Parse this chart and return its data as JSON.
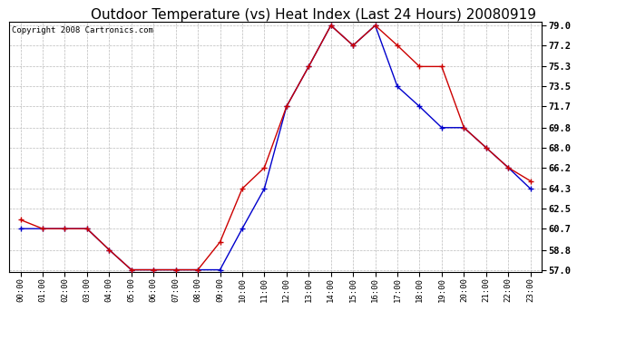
{
  "title": "Outdoor Temperature (vs) Heat Index (Last 24 Hours) 20080919",
  "copyright": "Copyright 2008 Cartronics.com",
  "x_labels": [
    "00:00",
    "01:00",
    "02:00",
    "03:00",
    "04:00",
    "05:00",
    "06:00",
    "07:00",
    "08:00",
    "09:00",
    "10:00",
    "11:00",
    "12:00",
    "13:00",
    "14:00",
    "15:00",
    "16:00",
    "17:00",
    "18:00",
    "19:00",
    "20:00",
    "21:00",
    "22:00",
    "23:00"
  ],
  "temp": [
    61.5,
    60.7,
    60.7,
    60.7,
    58.8,
    57.0,
    57.0,
    57.0,
    57.0,
    59.5,
    64.3,
    66.2,
    71.7,
    75.3,
    79.0,
    77.2,
    79.0,
    77.2,
    75.3,
    75.3,
    69.8,
    68.0,
    66.2,
    65.0
  ],
  "heat_index": [
    60.7,
    60.7,
    60.7,
    60.7,
    58.8,
    57.0,
    57.0,
    57.0,
    57.0,
    57.0,
    60.7,
    64.3,
    71.7,
    75.3,
    79.0,
    77.2,
    79.0,
    73.5,
    71.7,
    69.8,
    69.8,
    68.0,
    66.2,
    64.3
  ],
  "temp_color": "#cc0000",
  "heat_index_color": "#0000cc",
  "ylim_min": 57.0,
  "ylim_max": 79.0,
  "yticks": [
    57.0,
    58.8,
    60.7,
    62.5,
    64.3,
    66.2,
    68.0,
    69.8,
    71.7,
    73.5,
    75.3,
    77.2,
    79.0
  ],
  "ytick_labels": [
    "57.0",
    "58.8",
    "60.7",
    "62.5",
    "64.3",
    "66.2",
    "68.0",
    "69.8",
    "71.7",
    "73.5",
    "75.3",
    "77.2",
    "79.0"
  ],
  "bg_color": "#ffffff",
  "grid_color": "#bbbbbb",
  "title_fontsize": 11,
  "copyright_fontsize": 6.5
}
